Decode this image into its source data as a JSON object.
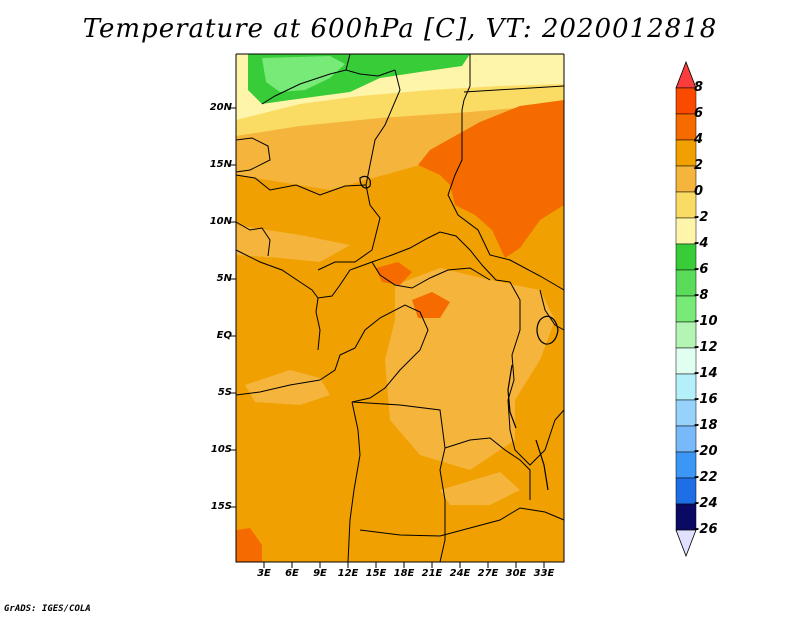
{
  "title": "Temperature at 600hPa [C], VT: 2020012818",
  "credit": "GrADS: IGES/COLA",
  "map": {
    "variable": "Temperature",
    "level": "600hPa",
    "units": "C",
    "valid_time": "2020012818",
    "lat_labels": [
      "20N",
      "15N",
      "10N",
      "5N",
      "EQ",
      "5S",
      "10S",
      "15S"
    ],
    "lon_labels": [
      "3E",
      "6E",
      "9E",
      "12E",
      "15E",
      "18E",
      "21E",
      "24E",
      "27E",
      "30E",
      "33E"
    ]
  },
  "colorbar": {
    "labels": [
      "8",
      "6",
      "4",
      "2",
      "0",
      "-2",
      "-4",
      "-6",
      "-8",
      "-10",
      "-12",
      "-14",
      "-16",
      "-18",
      "-20",
      "-22",
      "-24",
      "-26"
    ],
    "colors": [
      "#fa3c3c",
      "#fa4a00",
      "#f56b00",
      "#f0a000",
      "#f5b43c",
      "#fadc64",
      "#fff5aa",
      "#38cc38",
      "#5adc5a",
      "#78ea78",
      "#b4f5b4",
      "#e1fff0",
      "#b4f0fa",
      "#96d2fa",
      "#78b9fa",
      "#3c96f5",
      "#1e6ee6",
      "#1450d2",
      "#0028a0",
      "#0a0a64",
      "#e1e1ff"
    ]
  }
}
